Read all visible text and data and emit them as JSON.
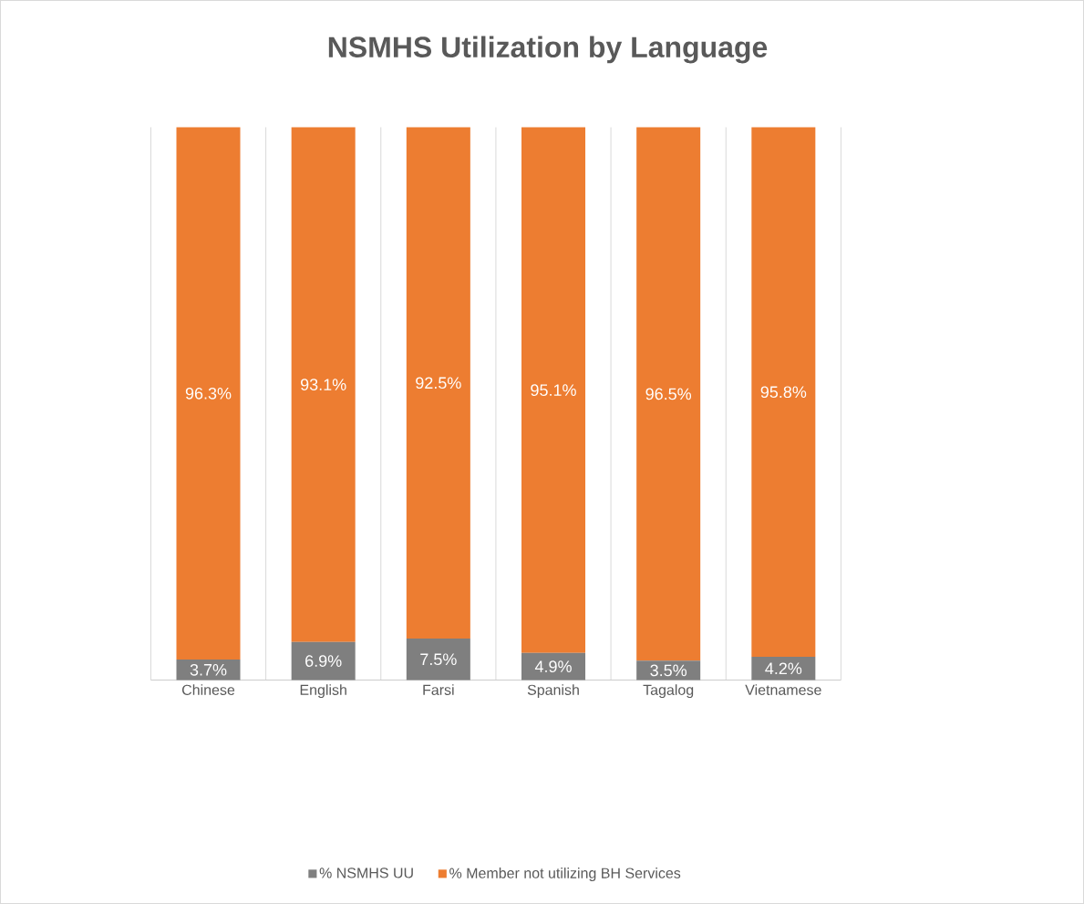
{
  "chart_data": {
    "type": "bar",
    "title": "NSMHS Utilization by Language",
    "categories": [
      "Chinese",
      "English",
      "Farsi",
      "Spanish",
      "Tagalog",
      "Vietnamese"
    ],
    "stacked": true,
    "grid": "x",
    "legend": "bottom",
    "series": [
      {
        "name": "% NSMHS UU",
        "color": "#7f7f7f",
        "values": [
          3.7,
          6.9,
          7.5,
          4.9,
          3.5,
          4.2
        ],
        "value_labels": [
          "3.7%",
          "6.9%",
          "7.5%",
          "4.9%",
          "3.5%",
          "4.2%"
        ]
      },
      {
        "name": "% Member not utilizing BH Services",
        "color": "#ed7d31",
        "values": [
          96.3,
          93.1,
          92.5,
          95.1,
          96.5,
          95.8
        ],
        "value_labels": [
          "96.3%",
          "93.1%",
          "92.5%",
          "95.1%",
          "96.5%",
          "95.8%"
        ]
      }
    ]
  }
}
